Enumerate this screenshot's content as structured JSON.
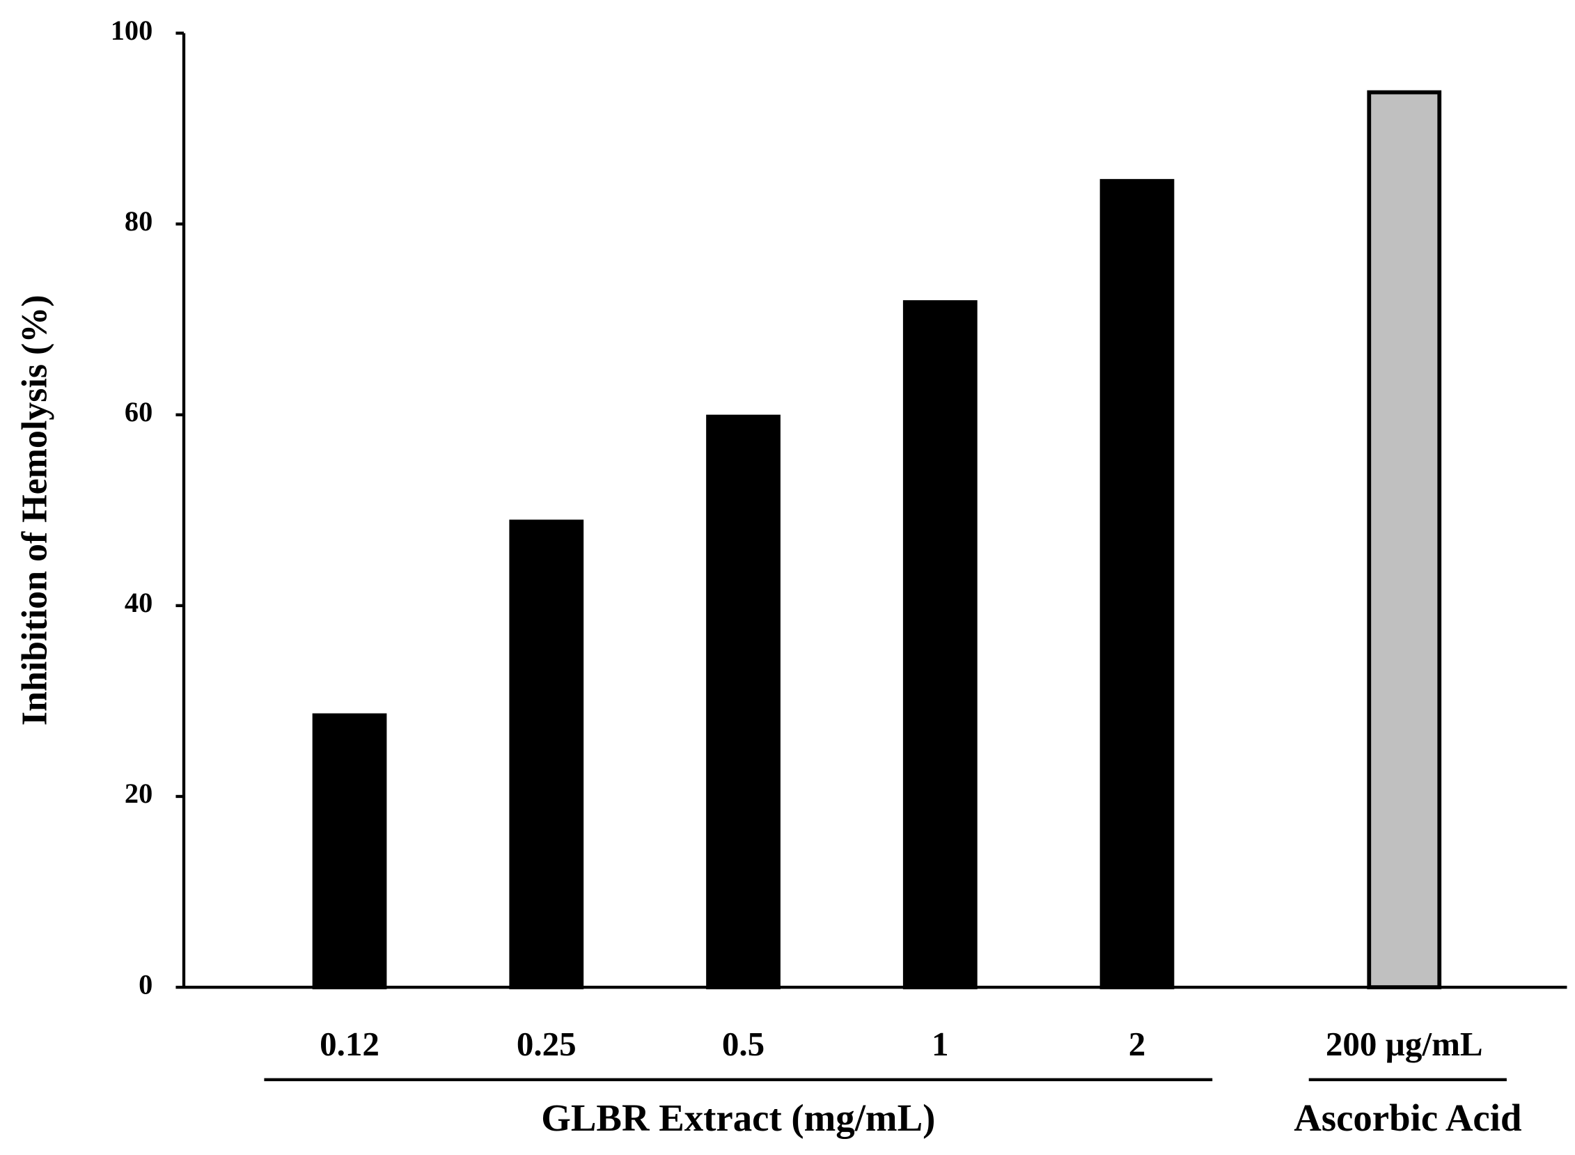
{
  "chart_data": {
    "type": "bar",
    "y_label": "Inhibition of Hemolysis (%)",
    "categories": [
      "0.12",
      "0.25",
      "0.5",
      "1",
      "2",
      "200 µg/mL"
    ],
    "values": [
      28.5,
      48.8,
      59.8,
      71.8,
      84.5,
      93.8
    ],
    "colors": [
      "#000000",
      "#000000",
      "#000000",
      "#000000",
      "#000000",
      "#c0c0c0"
    ],
    "group_labels": [
      "GLBR Extract (mg/mL)",
      "Ascorbic Acid"
    ],
    "ylim": [
      0,
      100
    ],
    "yticks": [
      0,
      20,
      40,
      60,
      80,
      100
    ],
    "grid": false
  }
}
